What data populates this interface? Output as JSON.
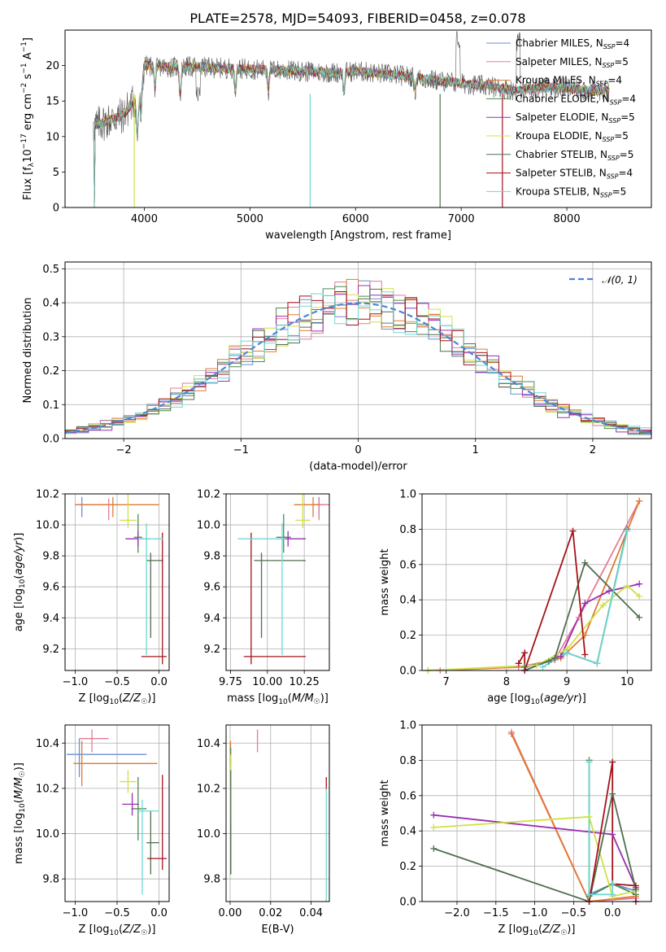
{
  "figure": {
    "title": "PLATE=2578, MJD=54093, FIBERID=0458, z=0.078"
  },
  "colors": {
    "models": [
      "#6a8fd4",
      "#e57b99",
      "#e07a2e",
      "#4c8a53",
      "#9a2fb0",
      "#cfe047",
      "#4f6f4f",
      "#a5121a",
      "#6fd8d3"
    ],
    "data": "#555555",
    "gaussian": "#4a86d6",
    "grid": "#b0b0b0"
  },
  "chart_data": [
    {
      "id": "spectrum",
      "type": "line",
      "xlabel": "wavelength [Angstrom, rest frame]",
      "ylabel": "Flux [f_λ10^-17 erg cm^-2 s^-1 A^-1]",
      "xlim": [
        3250,
        8800
      ],
      "ylim": [
        0,
        25
      ],
      "xticks": [
        4000,
        5000,
        6000,
        7000,
        8000
      ],
      "yticks": [
        0,
        5,
        10,
        15,
        20
      ],
      "legend_position": "top-right",
      "continuum": {
        "x": [
          3520,
          3800,
          3950,
          4000,
          4200,
          4500,
          4800,
          5000,
          5200,
          5500,
          5800,
          6000,
          6300,
          6500,
          6700,
          7000,
          7300,
          7500,
          7800,
          8000,
          8200,
          8400
        ],
        "y": [
          11.5,
          13.0,
          16.0,
          20.0,
          19.8,
          19.8,
          19.6,
          19.5,
          19.4,
          19.2,
          19.0,
          19.2,
          18.8,
          18.5,
          18.0,
          17.5,
          17.0,
          16.5,
          17.0,
          16.8,
          16.5,
          16.5
        ]
      },
      "series": [
        {
          "name": "Chabrier MILES",
          "nssp": "4"
        },
        {
          "name": "Salpeter MILES",
          "nssp": "5"
        },
        {
          "name": "Kroupa MILES",
          "nssp": "4"
        },
        {
          "name": "Chabrier ELODIE",
          "nssp": "4"
        },
        {
          "name": "Salpeter ELODIE",
          "nssp": "5"
        },
        {
          "name": "Kroupa ELODIE",
          "nssp": "5"
        },
        {
          "name": "Chabrier STELIB",
          "nssp": "5"
        },
        {
          "name": "Salpeter STELIB",
          "nssp": "4"
        },
        {
          "name": "Kroupa STELIB",
          "nssp": "5"
        }
      ]
    },
    {
      "id": "residuals",
      "type": "line",
      "xlabel": "(data-model)/error",
      "ylabel": "Normed distribution",
      "xlim": [
        -2.5,
        2.5
      ],
      "ylim": [
        0,
        0.52
      ],
      "xticks": [
        -2,
        -1,
        0,
        1,
        2
      ],
      "xticklabels": [
        "−2",
        "−1",
        "0",
        "1",
        "2"
      ],
      "yticks": [
        0.0,
        0.1,
        0.2,
        0.3,
        0.4,
        0.5
      ],
      "yticklabels": [
        "0.0",
        "0.1",
        "0.2",
        "0.3",
        "0.4",
        "0.5"
      ],
      "legend_label": "𝒩(0, 1)",
      "bin_width": 0.1
    },
    {
      "id": "age-vs-z",
      "type": "scatter",
      "xlabel": "Z [log10(Z/Z☉)]",
      "ylabel": "age [log10(age/yr)]",
      "xlim": [
        -1.12,
        0.12
      ],
      "ylim": [
        9.06,
        10.2
      ],
      "xticks": [
        -1.0,
        -0.5,
        0.0
      ],
      "xticklabels": [
        "−1.0",
        "−0.5",
        "0.0"
      ],
      "yticks": [
        9.2,
        9.4,
        9.6,
        9.8,
        10.0,
        10.2
      ],
      "yticklabels": [
        "9.2",
        "9.4",
        "9.6",
        "9.8",
        "10.0",
        "10.2"
      ],
      "points": [
        {
          "x": -0.92,
          "y": 10.13,
          "xerr": [
            0.05,
            0.05
          ],
          "yerr": [
            0.08,
            0.05
          ],
          "c": 0
        },
        {
          "x": -0.6,
          "y": 10.13,
          "xerr": [
            0.4,
            0.05
          ],
          "yerr": [
            0.1,
            0.04
          ],
          "c": 1
        },
        {
          "x": -0.55,
          "y": 10.13,
          "xerr": [
            0.45,
            0.55
          ],
          "yerr": [
            0.08,
            0.05
          ],
          "c": 2
        },
        {
          "x": -0.25,
          "y": 9.92,
          "xerr": [
            0.05,
            0.05
          ],
          "yerr": [
            0.1,
            0.15
          ],
          "c": 3
        },
        {
          "x": -0.25,
          "y": 9.91,
          "xerr": [
            0.15,
            0.12
          ],
          "yerr": [
            0.05,
            0.05
          ],
          "c": 4
        },
        {
          "x": -0.37,
          "y": 10.03,
          "xerr": [
            0.1,
            0.1
          ],
          "yerr": [
            0.05,
            0.18
          ],
          "c": 5
        },
        {
          "x": -0.1,
          "y": 9.77,
          "xerr": [
            0.05,
            0.15
          ],
          "yerr": [
            0.5,
            0.05
          ],
          "c": 6
        },
        {
          "x": 0.04,
          "y": 9.15,
          "xerr": [
            0.25,
            0.05
          ],
          "yerr": [
            0.05,
            0.8
          ],
          "c": 7
        },
        {
          "x": -0.15,
          "y": 9.91,
          "xerr": [
            0.1,
            0.2
          ],
          "yerr": [
            0.75,
            0.1
          ],
          "c": 8
        }
      ]
    },
    {
      "id": "age-vs-mass",
      "type": "scatter",
      "xlabel": "mass [log10(M/M☉)]",
      "ylabel": "",
      "xlim": [
        9.72,
        10.42
      ],
      "ylim": [
        9.06,
        10.2
      ],
      "xticks": [
        9.75,
        10.0,
        10.25
      ],
      "xticklabels": [
        "9.75",
        "10.00",
        "10.25"
      ],
      "yticks": [
        9.2,
        9.4,
        9.6,
        9.8,
        10.0,
        10.2
      ],
      "yticklabels": [
        "9.2",
        "9.4",
        "9.6",
        "9.8",
        "10.0",
        "10.2"
      ],
      "points": [
        {
          "x": 10.35,
          "y": 10.13,
          "xerr": [
            0.05,
            0.04
          ],
          "yerr": [
            0.08,
            0.05
          ],
          "c": 0
        },
        {
          "x": 10.35,
          "y": 10.13,
          "xerr": [
            0.02,
            0.08
          ],
          "yerr": [
            0.1,
            0.04
          ],
          "c": 1
        },
        {
          "x": 10.31,
          "y": 10.13,
          "xerr": [
            0.13,
            0.05
          ],
          "yerr": [
            0.08,
            0.05
          ],
          "c": 2
        },
        {
          "x": 10.11,
          "y": 9.92,
          "xerr": [
            0.05,
            0.05
          ],
          "yerr": [
            0.1,
            0.15
          ],
          "c": 3
        },
        {
          "x": 10.14,
          "y": 9.91,
          "xerr": [
            0.05,
            0.12
          ],
          "yerr": [
            0.05,
            0.05
          ],
          "c": 4
        },
        {
          "x": 10.24,
          "y": 10.03,
          "xerr": [
            0.05,
            0.05
          ],
          "yerr": [
            0.05,
            0.18
          ],
          "c": 5
        },
        {
          "x": 9.96,
          "y": 9.77,
          "xerr": [
            0.05,
            0.3
          ],
          "yerr": [
            0.5,
            0.05
          ],
          "c": 6
        },
        {
          "x": 9.89,
          "y": 9.15,
          "xerr": [
            0.05,
            0.37
          ],
          "yerr": [
            0.05,
            0.8
          ],
          "c": 7
        },
        {
          "x": 10.1,
          "y": 9.91,
          "xerr": [
            0.3,
            0.02
          ],
          "yerr": [
            0.75,
            0.1
          ],
          "c": 8
        }
      ]
    },
    {
      "id": "massweight-vs-age",
      "type": "line",
      "xlabel": "age [log10(age/yr)]",
      "ylabel": "mass weight",
      "xlim": [
        6.6,
        10.4
      ],
      "ylim": [
        0,
        1.0
      ],
      "xticks": [
        7,
        8,
        9,
        10
      ],
      "yticks": [
        0.0,
        0.2,
        0.4,
        0.6,
        0.8,
        1.0
      ],
      "yticklabels": [
        "0.0",
        "0.2",
        "0.4",
        "0.6",
        "0.8",
        "1.0"
      ],
      "series": [
        {
          "c": 0,
          "x": [
            8.3,
            8.8,
            9.0,
            9.5,
            10.0
          ],
          "y": [
            0.02,
            0.06,
            0.1,
            0.04,
            0.8
          ]
        },
        {
          "c": 1,
          "x": [
            6.9,
            8.2,
            8.8,
            9.2,
            10.2
          ],
          "y": [
            0.0,
            0.02,
            0.06,
            0.3,
            0.96
          ]
        },
        {
          "c": 2,
          "x": [
            6.7,
            8.3,
            8.9,
            9.3,
            10.2
          ],
          "y": [
            0.0,
            0.02,
            0.07,
            0.2,
            0.96
          ]
        },
        {
          "c": 3,
          "x": [
            8.3,
            8.7,
            9.0,
            9.5,
            10.0
          ],
          "y": [
            0.02,
            0.05,
            0.1,
            0.04,
            0.8
          ]
        },
        {
          "c": 4,
          "x": [
            8.3,
            8.9,
            9.3,
            9.7,
            10.2
          ],
          "y": [
            0.0,
            0.08,
            0.38,
            0.45,
            0.49
          ]
        },
        {
          "c": 5,
          "x": [
            6.7,
            8.5,
            9.0,
            9.6,
            10.0,
            10.2
          ],
          "y": [
            0.0,
            0.03,
            0.12,
            0.37,
            0.48,
            0.42
          ]
        },
        {
          "c": 6,
          "x": [
            8.3,
            8.8,
            9.3,
            10.2
          ],
          "y": [
            0.0,
            0.07,
            0.61,
            0.3
          ]
        },
        {
          "c": 7,
          "x": [
            8.2,
            8.3,
            8.3,
            9.1,
            9.3
          ],
          "y": [
            0.04,
            0.1,
            0.0,
            0.79,
            0.09
          ]
        },
        {
          "c": 8,
          "x": [
            8.6,
            9.0,
            9.5,
            10.0
          ],
          "y": [
            0.02,
            0.1,
            0.04,
            0.79
          ]
        }
      ]
    },
    {
      "id": "mass-vs-z",
      "type": "scatter",
      "xlabel": "Z [log10(Z/Z☉)]",
      "ylabel": "mass [log10(M/M☉)]",
      "xlim": [
        -1.12,
        0.12
      ],
      "ylim": [
        9.7,
        10.48
      ],
      "xticks": [
        -1.0,
        -0.5,
        0.0
      ],
      "xticklabels": [
        "−1.0",
        "−0.5",
        "0.0"
      ],
      "yticks": [
        9.8,
        10.0,
        10.2,
        10.4
      ],
      "yticklabels": [
        "9.8",
        "10.0",
        "10.2",
        "10.4"
      ],
      "points": [
        {
          "x": -0.95,
          "y": 10.35,
          "xerr": [
            0.15,
            0.8
          ],
          "yerr": [
            0.1,
            0.07
          ],
          "c": 0
        },
        {
          "x": -0.8,
          "y": 10.42,
          "xerr": [
            0.15,
            0.2
          ],
          "yerr": [
            0.06,
            0.04
          ],
          "c": 1
        },
        {
          "x": -0.92,
          "y": 10.31,
          "xerr": [
            0.1,
            0.9
          ],
          "yerr": [
            0.1,
            0.1
          ],
          "c": 2
        },
        {
          "x": -0.25,
          "y": 10.11,
          "xerr": [
            0.08,
            0.1
          ],
          "yerr": [
            0.14,
            0.14
          ],
          "c": 3
        },
        {
          "x": -0.32,
          "y": 10.13,
          "xerr": [
            0.12,
            0.08
          ],
          "yerr": [
            0.05,
            0.05
          ],
          "c": 4
        },
        {
          "x": -0.37,
          "y": 10.23,
          "xerr": [
            0.1,
            0.1
          ],
          "yerr": [
            0.05,
            0.05
          ],
          "c": 5
        },
        {
          "x": -0.1,
          "y": 9.96,
          "xerr": [
            0.05,
            0.1
          ],
          "yerr": [
            0.14,
            0.14
          ],
          "c": 6
        },
        {
          "x": 0.04,
          "y": 9.89,
          "xerr": [
            0.18,
            0.05
          ],
          "yerr": [
            0.05,
            0.37
          ],
          "c": 7
        },
        {
          "x": -0.2,
          "y": 10.1,
          "xerr": [
            0.05,
            0.2
          ],
          "yerr": [
            0.37,
            0.05
          ],
          "c": 8
        }
      ]
    },
    {
      "id": "mass-vs-ebv",
      "type": "scatter",
      "xlabel": "E(B-V)",
      "ylabel": "",
      "xlim": [
        -0.002,
        0.049
      ],
      "ylim": [
        9.7,
        10.48
      ],
      "xticks": [
        0.0,
        0.02,
        0.04
      ],
      "xticklabels": [
        "0.00",
        "0.02",
        "0.04"
      ],
      "yticks": [
        9.8,
        10.0,
        10.2,
        10.4
      ],
      "yticklabels": [
        "9.8",
        "10.0",
        "10.2",
        "10.4"
      ],
      "points": [
        {
          "x": 0.0001,
          "y": 10.35,
          "xerr": [
            0,
            0
          ],
          "yerr": [
            0.05,
            0.05
          ],
          "c": 0
        },
        {
          "x": 0.0135,
          "y": 10.41,
          "xerr": [
            0,
            0
          ],
          "yerr": [
            0.05,
            0.05
          ],
          "c": 1
        },
        {
          "x": 0.0002,
          "y": 10.31,
          "xerr": [
            0,
            0
          ],
          "yerr": [
            0.1,
            0.1
          ],
          "c": 2
        },
        {
          "x": 0.0003,
          "y": 10.1,
          "xerr": [
            0,
            0
          ],
          "yerr": [
            0.28,
            0.28
          ],
          "c": 3
        },
        {
          "x": 0.0003,
          "y": 10.2,
          "xerr": [
            0,
            0
          ],
          "yerr": [
            0.15,
            0.15
          ],
          "c": 5
        },
        {
          "x": 0.0003,
          "y": 10.05,
          "xerr": [
            0,
            0
          ],
          "yerr": [
            0.23,
            0.23
          ],
          "c": 6
        },
        {
          "x": 0.0475,
          "y": 10.22,
          "xerr": [
            0,
            0
          ],
          "yerr": [
            0.03,
            0.03
          ],
          "c": 7
        },
        {
          "x": 0.0475,
          "y": 9.95,
          "xerr": [
            0,
            0
          ],
          "yerr": [
            0.25,
            0.25
          ],
          "c": 8
        }
      ]
    },
    {
      "id": "massweight-vs-z",
      "type": "line",
      "xlabel": "Z [log10(Z/Z☉)]",
      "ylabel": "mass weight",
      "xlim": [
        -2.45,
        0.5
      ],
      "ylim": [
        0,
        1.0
      ],
      "xticks": [
        -2.0,
        -1.5,
        -1.0,
        -0.5,
        0.0
      ],
      "xticklabels": [
        "−2.0",
        "−1.5",
        "−1.0",
        "−0.5",
        "0.0"
      ],
      "yticks": [
        0.0,
        0.2,
        0.4,
        0.6,
        0.8,
        1.0
      ],
      "yticklabels": [
        "0.0",
        "0.2",
        "0.4",
        "0.6",
        "0.8",
        "1.0"
      ],
      "series": [
        {
          "c": 0,
          "x": [
            -0.3,
            -0.3,
            0.0,
            0.3
          ],
          "y": [
            0.8,
            0.04,
            0.1,
            0.06
          ]
        },
        {
          "c": 1,
          "x": [
            -1.3,
            -0.3,
            0.3
          ],
          "y": [
            0.96,
            0.0,
            0.02
          ]
        },
        {
          "c": 2,
          "x": [
            -1.3,
            -0.3,
            0.3
          ],
          "y": [
            0.95,
            0.0,
            0.03
          ]
        },
        {
          "c": 3,
          "x": [
            -0.3,
            -0.3,
            0.0,
            0.3
          ],
          "y": [
            0.8,
            0.03,
            0.1,
            0.04
          ]
        },
        {
          "c": 4,
          "x": [
            -2.3,
            0.0,
            0.3,
            0.3
          ],
          "y": [
            0.49,
            0.38,
            0.08,
            0.0
          ]
        },
        {
          "c": 5,
          "x": [
            -2.3,
            -0.3,
            0.0,
            0.3
          ],
          "y": [
            0.42,
            0.48,
            0.03,
            0.06
          ]
        },
        {
          "c": 6,
          "x": [
            -2.3,
            -0.3,
            0.0,
            0.3
          ],
          "y": [
            0.3,
            0.0,
            0.61,
            0.07
          ]
        },
        {
          "c": 7,
          "x": [
            -0.3,
            0.0,
            0.0,
            0.3,
            0.3
          ],
          "y": [
            0.0,
            0.79,
            0.1,
            0.09,
            0.0
          ]
        },
        {
          "c": 8,
          "x": [
            -0.3,
            -0.3,
            0.0,
            0.0
          ],
          "y": [
            0.79,
            0.04,
            0.04,
            0.1
          ]
        }
      ]
    }
  ]
}
